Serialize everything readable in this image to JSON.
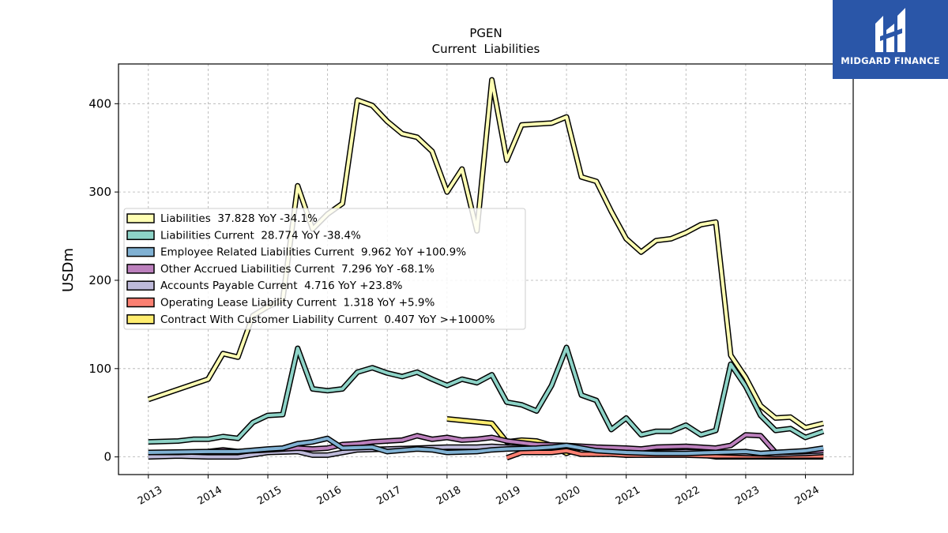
{
  "chart_data": {
    "type": "line",
    "title": "PGEN",
    "subtitle": "Current  Liabilities",
    "ylabel": "USDm",
    "xlabel": "",
    "xlim": [
      2012.5,
      2024.8
    ],
    "ylim": [
      -20,
      445
    ],
    "yticks": [
      0,
      100,
      200,
      300,
      400
    ],
    "xticks": [
      2013,
      2014,
      2015,
      2016,
      2017,
      2018,
      2019,
      2020,
      2021,
      2022,
      2023,
      2024
    ],
    "grid": true,
    "legend_position": "center-left",
    "series": [
      {
        "name": "Liabilities",
        "legend": "Liabilities  37.828 YoY -34.1%",
        "color": "#ffffb3",
        "points": [
          [
            2013.0,
            65
          ],
          [
            2014.0,
            88
          ],
          [
            2014.25,
            117
          ],
          [
            2014.5,
            113
          ],
          [
            2014.75,
            160
          ],
          [
            2015.0,
            170
          ],
          [
            2015.25,
            178
          ],
          [
            2015.5,
            307
          ],
          [
            2015.75,
            258
          ],
          [
            2016.0,
            275
          ],
          [
            2016.25,
            287
          ],
          [
            2016.5,
            404
          ],
          [
            2016.75,
            398
          ],
          [
            2017.0,
            380
          ],
          [
            2017.25,
            366
          ],
          [
            2017.5,
            362
          ],
          [
            2017.75,
            346
          ],
          [
            2018.0,
            300
          ],
          [
            2018.25,
            326
          ],
          [
            2018.5,
            256
          ],
          [
            2018.75,
            427
          ],
          [
            2019.0,
            336
          ],
          [
            2019.25,
            376
          ],
          [
            2019.5,
            377
          ],
          [
            2019.75,
            378
          ],
          [
            2020.0,
            385
          ],
          [
            2020.25,
            317
          ],
          [
            2020.5,
            312
          ],
          [
            2020.75,
            278
          ],
          [
            2021.0,
            247
          ],
          [
            2021.25,
            232
          ],
          [
            2021.5,
            245
          ],
          [
            2021.75,
            247
          ],
          [
            2022.0,
            254
          ],
          [
            2022.25,
            263
          ],
          [
            2022.5,
            266
          ],
          [
            2022.75,
            115
          ],
          [
            2023.0,
            90
          ],
          [
            2023.25,
            58
          ],
          [
            2023.5,
            44
          ],
          [
            2023.75,
            45
          ],
          [
            2024.0,
            33
          ],
          [
            2024.3,
            38
          ]
        ]
      },
      {
        "name": "Liabilities Current",
        "legend": "Liabilities Current  28.774 YoY -38.4%",
        "color": "#8dd3c7",
        "points": [
          [
            2013.0,
            17
          ],
          [
            2013.5,
            18
          ],
          [
            2013.75,
            20
          ],
          [
            2014.0,
            20
          ],
          [
            2014.25,
            23
          ],
          [
            2014.5,
            21
          ],
          [
            2014.75,
            39
          ],
          [
            2015.0,
            47
          ],
          [
            2015.25,
            48
          ],
          [
            2015.5,
            123
          ],
          [
            2015.75,
            77
          ],
          [
            2016.0,
            75
          ],
          [
            2016.25,
            77
          ],
          [
            2016.5,
            96
          ],
          [
            2016.75,
            101
          ],
          [
            2017.0,
            95
          ],
          [
            2017.25,
            91
          ],
          [
            2017.5,
            96
          ],
          [
            2017.75,
            88
          ],
          [
            2018.0,
            81
          ],
          [
            2018.25,
            88
          ],
          [
            2018.5,
            84
          ],
          [
            2018.75,
            93
          ],
          [
            2019.0,
            62
          ],
          [
            2019.25,
            59
          ],
          [
            2019.5,
            52
          ],
          [
            2019.75,
            81
          ],
          [
            2020.0,
            124
          ],
          [
            2020.25,
            70
          ],
          [
            2020.5,
            64
          ],
          [
            2020.75,
            31
          ],
          [
            2021.0,
            44
          ],
          [
            2021.25,
            25
          ],
          [
            2021.5,
            29
          ],
          [
            2021.75,
            29
          ],
          [
            2022.0,
            36
          ],
          [
            2022.25,
            25
          ],
          [
            2022.5,
            30
          ],
          [
            2022.75,
            105
          ],
          [
            2023.0,
            80
          ],
          [
            2023.25,
            47
          ],
          [
            2023.5,
            30
          ],
          [
            2023.75,
            32
          ],
          [
            2024.0,
            22
          ],
          [
            2024.3,
            29
          ]
        ]
      },
      {
        "name": "Employee Related Liabilities Current",
        "legend": "Employee Related Liabilities Current  9.962 YoY +100.9%",
        "color": "#80b1d3",
        "points": [
          [
            2013.0,
            5
          ],
          [
            2014.0,
            6
          ],
          [
            2014.5,
            6
          ],
          [
            2015.0,
            9
          ],
          [
            2015.25,
            10
          ],
          [
            2015.5,
            15
          ],
          [
            2015.75,
            17
          ],
          [
            2016.0,
            21
          ],
          [
            2016.25,
            10
          ],
          [
            2016.75,
            11
          ],
          [
            2017.0,
            6
          ],
          [
            2017.5,
            9
          ],
          [
            2017.75,
            8
          ],
          [
            2018.0,
            5
          ],
          [
            2018.5,
            6
          ],
          [
            2018.75,
            8
          ],
          [
            2019.0,
            9
          ],
          [
            2019.5,
            10
          ],
          [
            2019.75,
            11
          ],
          [
            2020.0,
            13
          ],
          [
            2020.5,
            7
          ],
          [
            2021.0,
            5
          ],
          [
            2021.5,
            4
          ],
          [
            2022.0,
            4
          ],
          [
            2022.5,
            5
          ],
          [
            2023.0,
            6
          ],
          [
            2023.25,
            4
          ],
          [
            2023.5,
            5
          ],
          [
            2024.0,
            7
          ],
          [
            2024.3,
            10
          ]
        ]
      },
      {
        "name": "Other Accrued Liabilities Current",
        "legend": "Other Accrued Liabilities Current  7.296 YoY -68.1%",
        "color": "#bc80bd",
        "points": [
          [
            2013.0,
            5
          ],
          [
            2013.5,
            5
          ],
          [
            2014.0,
            6
          ],
          [
            2014.25,
            8
          ],
          [
            2014.5,
            6
          ],
          [
            2015.0,
            8
          ],
          [
            2015.5,
            10
          ],
          [
            2015.75,
            9
          ],
          [
            2016.0,
            10
          ],
          [
            2016.25,
            14
          ],
          [
            2016.5,
            15
          ],
          [
            2016.75,
            17
          ],
          [
            2017.0,
            18
          ],
          [
            2017.25,
            19
          ],
          [
            2017.5,
            24
          ],
          [
            2017.75,
            20
          ],
          [
            2018.0,
            22
          ],
          [
            2018.25,
            19
          ],
          [
            2018.5,
            20
          ],
          [
            2018.75,
            22
          ],
          [
            2019.0,
            18
          ],
          [
            2019.5,
            14
          ],
          [
            2020.0,
            13
          ],
          [
            2020.5,
            11
          ],
          [
            2021.0,
            10
          ],
          [
            2021.25,
            9
          ],
          [
            2021.5,
            11
          ],
          [
            2022.0,
            12
          ],
          [
            2022.5,
            10
          ],
          [
            2022.75,
            13
          ],
          [
            2023.0,
            25
          ],
          [
            2023.25,
            24
          ],
          [
            2023.5,
            5
          ],
          [
            2024.0,
            6
          ],
          [
            2024.3,
            7
          ]
        ]
      },
      {
        "name": "Accounts Payable Current",
        "legend": "Accounts Payable Current  4.716 YoY +23.8%",
        "color": "#bebada",
        "points": [
          [
            2013.0,
            0
          ],
          [
            2013.5,
            1
          ],
          [
            2014.0,
            0
          ],
          [
            2014.5,
            0
          ],
          [
            2015.0,
            5
          ],
          [
            2015.5,
            6
          ],
          [
            2015.75,
            2
          ],
          [
            2016.0,
            2
          ],
          [
            2016.5,
            8
          ],
          [
            2017.0,
            9
          ],
          [
            2017.5,
            10
          ],
          [
            2018.0,
            11
          ],
          [
            2018.5,
            11
          ],
          [
            2018.75,
            12
          ],
          [
            2019.0,
            11
          ],
          [
            2019.5,
            10
          ],
          [
            2020.0,
            12
          ],
          [
            2020.5,
            8
          ],
          [
            2021.0,
            8
          ],
          [
            2021.5,
            5
          ],
          [
            2022.0,
            6
          ],
          [
            2022.5,
            5
          ],
          [
            2023.0,
            4
          ],
          [
            2023.5,
            3
          ],
          [
            2024.0,
            4
          ],
          [
            2024.3,
            5
          ]
        ]
      },
      {
        "name": "Operating Lease Liability Current",
        "legend": "Operating Lease Liability Current  1.318 YoY +5.9%",
        "color": "#fb8072",
        "points": [
          [
            2019.0,
            -1
          ],
          [
            2019.25,
            5
          ],
          [
            2019.75,
            5
          ],
          [
            2020.0,
            7
          ],
          [
            2020.25,
            3
          ],
          [
            2020.75,
            3
          ],
          [
            2021.0,
            2
          ],
          [
            2021.5,
            2
          ],
          [
            2022.0,
            2
          ],
          [
            2022.5,
            1
          ],
          [
            2023.0,
            1
          ],
          [
            2023.5,
            1
          ],
          [
            2024.0,
            1
          ],
          [
            2024.3,
            1
          ]
        ]
      },
      {
        "name": "Contract With Customer Liability Current",
        "legend": "Contract With Customer Liability Current  0.407 YoY >+1000%",
        "color": "#ffed6f",
        "points": [
          [
            2018.0,
            43
          ],
          [
            2018.75,
            38
          ],
          [
            2019.0,
            17
          ],
          [
            2019.25,
            19
          ],
          [
            2019.5,
            18
          ],
          [
            2019.75,
            13
          ],
          [
            2020.0,
            4
          ],
          [
            2020.25,
            11
          ],
          [
            2020.5,
            7
          ],
          [
            2021.0,
            2
          ],
          [
            2021.5,
            3
          ],
          [
            2022.0,
            5
          ],
          [
            2022.5,
            0
          ],
          [
            2023.0,
            0
          ],
          [
            2023.5,
            0
          ],
          [
            2024.0,
            0
          ],
          [
            2024.3,
            0
          ]
        ]
      }
    ]
  },
  "logo": {
    "text": "MIDGARD FINANCE",
    "bg_color": "#2a56a8"
  }
}
